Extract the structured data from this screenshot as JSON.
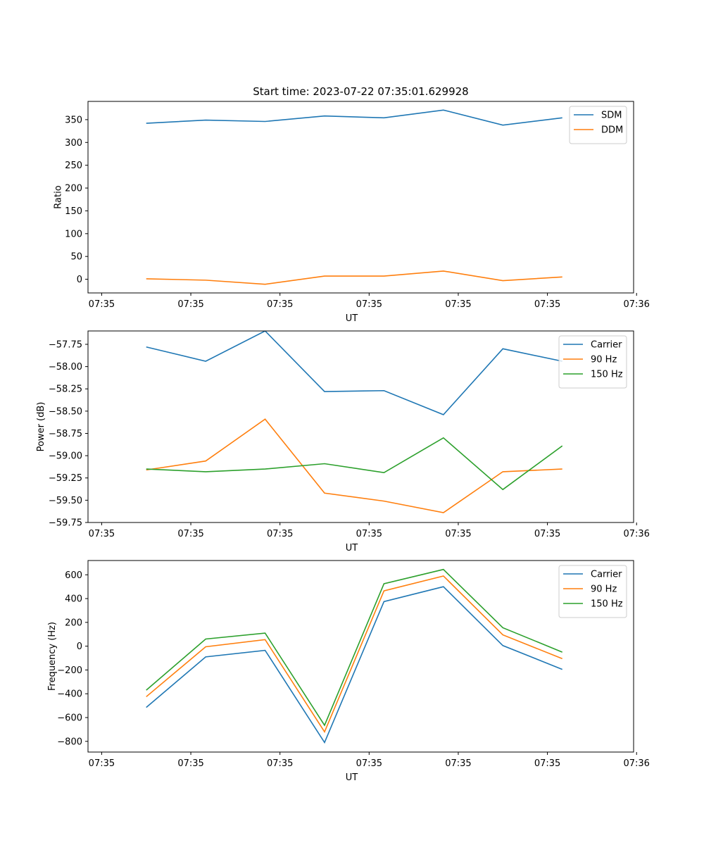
{
  "chart_data": [
    {
      "type": "line",
      "title": "Start time: 2023-07-22 07:35:01.629928",
      "xlabel": "UT",
      "ylabel": "Ratio",
      "xlim": [
        -0.98,
        8.2
      ],
      "ylim": [
        -30,
        390
      ],
      "x": [
        0,
        1,
        2,
        3,
        4,
        5,
        6,
        7
      ],
      "xticks": [
        -0.75,
        0.75,
        2.25,
        3.75,
        5.25,
        6.75,
        8.25
      ],
      "xticklabels": [
        "07:35",
        "07:35",
        "07:35",
        "07:35",
        "07:35",
        "07:35",
        "07:36"
      ],
      "yticks": [
        0,
        50,
        100,
        150,
        200,
        250,
        300,
        350
      ],
      "yticklabels": [
        "0",
        "50",
        "100",
        "150",
        "200",
        "250",
        "300",
        "350"
      ],
      "legend_position": "top-right",
      "grid": false,
      "series": [
        {
          "name": "SDM",
          "color": "#1f77b4",
          "values": [
            342,
            349,
            346,
            358,
            354,
            371,
            338,
            354
          ]
        },
        {
          "name": "DDM",
          "color": "#ff7f0e",
          "values": [
            1,
            -2,
            -11,
            7,
            7,
            18,
            -3,
            5
          ]
        }
      ]
    },
    {
      "type": "line",
      "title": "",
      "xlabel": "UT",
      "ylabel": "Power (dB)",
      "xlim": [
        -0.98,
        8.2
      ],
      "ylim": [
        -59.75,
        -57.6
      ],
      "x": [
        0,
        1,
        2,
        3,
        4,
        5,
        6,
        7
      ],
      "xticks": [
        -0.75,
        0.75,
        2.25,
        3.75,
        5.25,
        6.75,
        8.25
      ],
      "xticklabels": [
        "07:35",
        "07:35",
        "07:35",
        "07:35",
        "07:35",
        "07:35",
        "07:36"
      ],
      "yticks": [
        -57.75,
        -58.0,
        -58.25,
        -58.5,
        -58.75,
        -59.0,
        -59.25,
        -59.5,
        -59.75
      ],
      "yticklabels": [
        "−57.75",
        "−58.00",
        "−58.25",
        "−58.50",
        "−58.75",
        "−59.00",
        "−59.25",
        "−59.50",
        "−59.75"
      ],
      "legend_position": "top-right",
      "grid": false,
      "series": [
        {
          "name": "Carrier",
          "color": "#1f77b4",
          "values": [
            -57.78,
            -57.94,
            -57.6,
            -58.28,
            -58.27,
            -58.54,
            -57.8,
            -57.94
          ]
        },
        {
          "name": "90 Hz",
          "color": "#ff7f0e",
          "values": [
            -59.16,
            -59.06,
            -58.59,
            -59.42,
            -59.51,
            -59.64,
            -59.18,
            -59.15
          ]
        },
        {
          "name": "150 Hz",
          "color": "#2ca02c",
          "values": [
            -59.15,
            -59.18,
            -59.15,
            -59.09,
            -59.19,
            -58.8,
            -59.38,
            -58.89
          ]
        }
      ]
    },
    {
      "type": "line",
      "title": "",
      "xlabel": "UT",
      "ylabel": "Frequency (Hz)",
      "xlim": [
        -0.98,
        8.2
      ],
      "ylim": [
        -890,
        720
      ],
      "x": [
        0,
        1,
        2,
        3,
        4,
        5,
        6,
        7
      ],
      "xticks": [
        -0.75,
        0.75,
        2.25,
        3.75,
        5.25,
        6.75,
        8.25
      ],
      "xticklabels": [
        "07:35",
        "07:35",
        "07:35",
        "07:35",
        "07:35",
        "07:35",
        "07:36"
      ],
      "yticks": [
        600,
        400,
        200,
        0,
        -200,
        -400,
        -600,
        -800
      ],
      "yticklabels": [
        "600",
        "400",
        "200",
        "0",
        "−200",
        "−400",
        "−600",
        "−800"
      ],
      "legend_position": "top-right",
      "grid": false,
      "series": [
        {
          "name": "Carrier",
          "color": "#1f77b4",
          "values": [
            -515,
            -90,
            -35,
            -810,
            375,
            500,
            5,
            -195
          ]
        },
        {
          "name": "90 Hz",
          "color": "#ff7f0e",
          "values": [
            -425,
            -5,
            55,
            -720,
            465,
            590,
            95,
            -105
          ]
        },
        {
          "name": "150 Hz",
          "color": "#2ca02c",
          "values": [
            -370,
            60,
            110,
            -665,
            525,
            645,
            155,
            -50
          ]
        }
      ]
    }
  ]
}
